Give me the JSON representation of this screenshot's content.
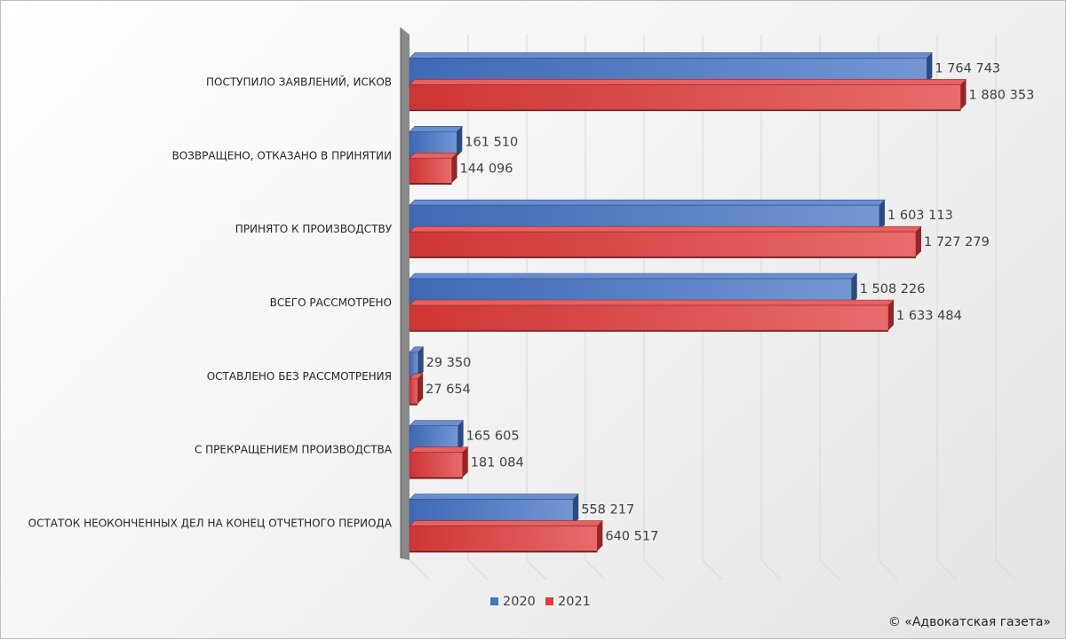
{
  "chart_data": {
    "type": "bar",
    "orientation": "horizontal",
    "categories": [
      "ПОСТУПИЛО ЗАЯВЛЕНИЙ, ИСКОВ",
      "ВОЗВРАЩЕНО, ОТКАЗАНО В ПРИНЯТИИ",
      "ПРИНЯТО К ПРОИЗВОДСТВУ",
      "ВСЕГО РАССМОТРЕНО",
      "ОСТАВЛЕНО БЕЗ РАССМОТРЕНИЯ",
      "С ПРЕКРАЩЕНИЕМ ПРОИЗВОДСТВА",
      "ОСТАТОК НЕОКОНЧЕННЫХ ДЕЛ НА КОНЕЦ ОТЧЕТНОГО ПЕРИОДА"
    ],
    "series": [
      {
        "name": "2020",
        "color": "#4472c4",
        "values": [
          1764743,
          161510,
          1603113,
          1508226,
          29350,
          165605,
          558217
        ],
        "labels": [
          "1 764 743",
          "161 510",
          "1 603 113",
          "1 508 226",
          "29 350",
          "165 605",
          "558 217"
        ]
      },
      {
        "name": "2021",
        "color": "#e03a3a",
        "values": [
          1880353,
          144096,
          1727279,
          1633484,
          27654,
          181084,
          640517
        ],
        "labels": [
          "1 880 353",
          "144 096",
          "1 727 279",
          "1 633 484",
          "27 654",
          "181 084",
          "640 517"
        ]
      }
    ],
    "xlim": [
      0,
      2000000
    ],
    "grid": true,
    "legend": "bottom-center",
    "style": "3d-bar"
  },
  "credit": "© «Адвокатская газета»"
}
